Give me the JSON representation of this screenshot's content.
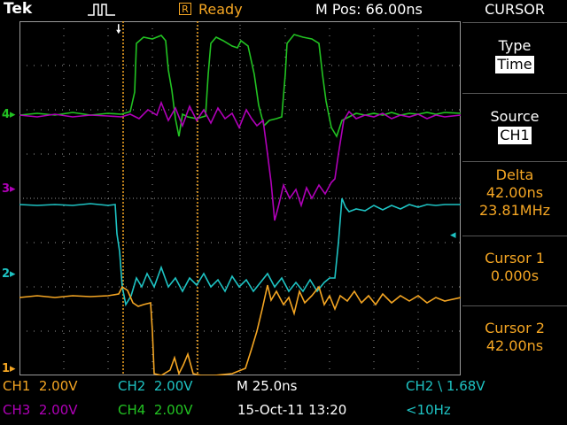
{
  "header": {
    "brand": "Tek",
    "trigger_icon": "trigger-pulse-icon",
    "status_letter": "R",
    "status": "Ready",
    "mpos": "M Pos: 66.00ns"
  },
  "menu": {
    "title": "CURSOR",
    "type_label": "Type",
    "type_value": "Time",
    "source_label": "Source",
    "source_value": "CH1",
    "delta_label": "Delta",
    "delta_time": "42.00ns",
    "delta_freq": "23.81MHz",
    "cursor1_label": "Cursor 1",
    "cursor1_value": "0.000s",
    "cursor2_label": "Cursor 2",
    "cursor2_value": "42.00ns"
  },
  "footer": {
    "ch1": "CH1  2.00V",
    "ch2": "CH2  2.00V",
    "ch3": "CH3  2.00V",
    "ch4": "CH4  2.00V",
    "timebase": "M 25.0ns",
    "trigger": "CH2 \\ 1.68V",
    "date": "15-Oct-11 13:20",
    "freq": "<10Hz"
  },
  "channel_markers": {
    "ch1": "1",
    "ch2": "2",
    "ch3": "3",
    "ch4": "4"
  },
  "colors": {
    "ch1": "#f5a623",
    "ch2": "#1ec3c3",
    "ch3": "#b000b8",
    "ch4": "#22c322",
    "grid": "#9a9a9a"
  }
}
